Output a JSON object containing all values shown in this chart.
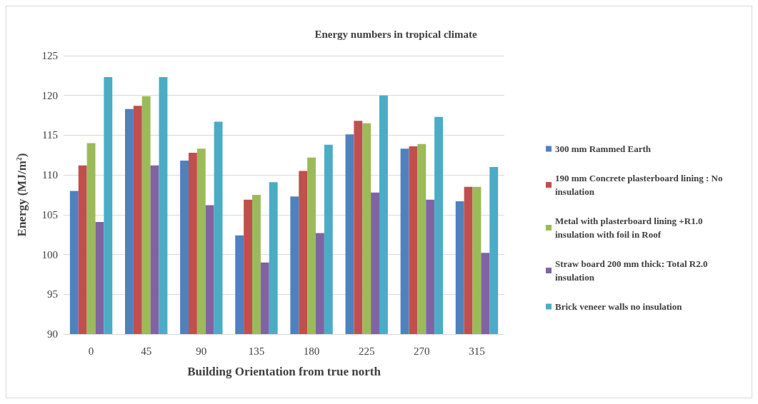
{
  "chart_data": {
    "type": "bar",
    "title": "Energy numbers in tropical climate",
    "xlabel": "Building Orientation from true north",
    "ylabel": "Energy (MJ/m$^{2}$)",
    "categories": [
      "0",
      "45",
      "90",
      "135",
      "180",
      "225",
      "270",
      "315"
    ],
    "series": [
      {
        "name": "300 mm Rammed Earth",
        "color": "#4f81bd",
        "values": [
          108,
          118.3,
          111.8,
          102.4,
          107.3,
          115.1,
          113.3,
          106.7
        ]
      },
      {
        "name": "190 mm Concrete plasterboard lining : No insulation",
        "color": "#c0504d",
        "values": [
          111.2,
          118.7,
          112.8,
          106.9,
          110.5,
          116.8,
          113.6,
          108.5
        ]
      },
      {
        "name": "Metal with plasterboard lining +R1.0 insulation with foil in Roof",
        "color": "#9bbb59",
        "values": [
          114,
          119.9,
          113.3,
          107.5,
          112.2,
          116.5,
          113.9,
          108.5
        ]
      },
      {
        "name": "Straw board 200 mm thick: Total R2.0 insulation",
        "color": "#8064a2",
        "values": [
          104.1,
          111.2,
          106.2,
          99,
          102.7,
          107.8,
          106.9,
          100.2
        ]
      },
      {
        "name": "Brick veneer walls no insulation",
        "color": "#4bacc6",
        "values": [
          122.3,
          122.3,
          116.7,
          109.1,
          113.8,
          120,
          117.3,
          111
        ]
      }
    ],
    "ylim": [
      90,
      125
    ],
    "yticks": [
      90,
      95,
      100,
      105,
      110,
      115,
      120,
      125
    ],
    "grid": "y",
    "legend": "right"
  }
}
